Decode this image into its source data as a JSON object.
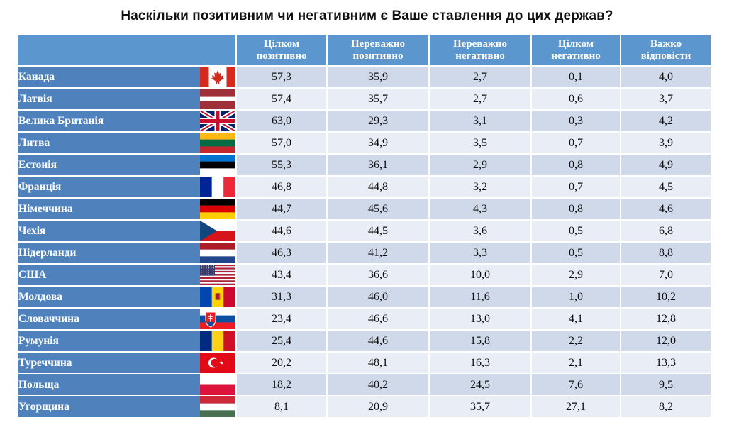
{
  "title": "Наскільки позитивним чи негативним є Ваше ставлення до цих держав?",
  "chart_data": {
    "type": "table",
    "title": "Наскільки позитивним чи негативним є Ваше ставлення до цих держав?",
    "columns": [
      [
        "Цілком",
        "позитивно"
      ],
      [
        "Переважно",
        "позитивно"
      ],
      [
        "Переважно",
        "негативно"
      ],
      [
        "Цілком",
        "негативно"
      ],
      [
        "Важко",
        "відповісти"
      ]
    ],
    "rows": [
      {
        "country": "Канада",
        "flag": "canada-flag-icon",
        "values": [
          "57,3",
          "35,9",
          "2,7",
          "0,1",
          "4,0"
        ]
      },
      {
        "country": "Латвія",
        "flag": "latvia-flag-icon",
        "values": [
          "57,4",
          "35,7",
          "2,7",
          "0,6",
          "3,7"
        ]
      },
      {
        "country": "Велика Британія",
        "flag": "uk-flag-icon",
        "values": [
          "63,0",
          "29,3",
          "3,1",
          "0,3",
          "4,2"
        ]
      },
      {
        "country": "Литва",
        "flag": "lithuania-flag-icon",
        "values": [
          "57,0",
          "34,9",
          "3,5",
          "0,7",
          "3,9"
        ]
      },
      {
        "country": "Естонія",
        "flag": "estonia-flag-icon",
        "values": [
          "55,3",
          "36,1",
          "2,9",
          "0,8",
          "4,9"
        ]
      },
      {
        "country": "Франція",
        "flag": "france-flag-icon",
        "values": [
          "46,8",
          "44,8",
          "3,2",
          "0,7",
          "4,5"
        ]
      },
      {
        "country": "Німеччина",
        "flag": "germany-flag-icon",
        "values": [
          "44,7",
          "45,6",
          "4,3",
          "0,8",
          "4,6"
        ]
      },
      {
        "country": "Чехія",
        "flag": "czechia-flag-icon",
        "values": [
          "44,6",
          "44,5",
          "3,6",
          "0,5",
          "6,8"
        ]
      },
      {
        "country": "Нідерланди",
        "flag": "netherlands-flag-icon",
        "values": [
          "46,3",
          "41,2",
          "3,3",
          "0,5",
          "8,8"
        ]
      },
      {
        "country": "США",
        "flag": "usa-flag-icon",
        "values": [
          "43,4",
          "36,6",
          "10,0",
          "2,9",
          "7,0"
        ]
      },
      {
        "country": "Молдова",
        "flag": "moldova-flag-icon",
        "values": [
          "31,3",
          "46,0",
          "11,6",
          "1,0",
          "10,2"
        ]
      },
      {
        "country": "Словаччина",
        "flag": "slovakia-flag-icon",
        "values": [
          "23,4",
          "46,6",
          "13,0",
          "4,1",
          "12,8"
        ]
      },
      {
        "country": "Румунія",
        "flag": "romania-flag-icon",
        "values": [
          "25,4",
          "44,6",
          "15,8",
          "2,2",
          "12,0"
        ]
      },
      {
        "country": "Туреччина",
        "flag": "turkey-flag-icon",
        "values": [
          "20,2",
          "48,1",
          "16,3",
          "2,1",
          "13,3"
        ]
      },
      {
        "country": "Польща",
        "flag": "poland-flag-icon",
        "values": [
          "18,2",
          "40,2",
          "24,5",
          "7,6",
          "9,5"
        ]
      },
      {
        "country": "Угорщина",
        "flag": "hungary-flag-icon",
        "values": [
          "8,1",
          "20,9",
          "35,7",
          "27,1",
          "8,2"
        ]
      }
    ],
    "colors": {
      "header": "#5b96cf",
      "country_cell": "#4f81bd",
      "row_odd": "#d0d9ea",
      "row_even": "#e8edf6"
    }
  }
}
